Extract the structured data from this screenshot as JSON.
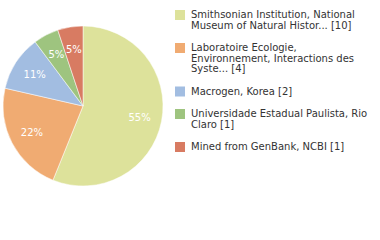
{
  "chart_data": {
    "type": "pie",
    "categories": [
      "Smithsonian Institution, National Museum of Natural Histor... [10]",
      "Laboratoire Ecologie, Environnement, Interactions des Syste... [4]",
      "Macrogen, Korea [2]",
      "Universidade Estadual Paulista, Rio Claro [1]",
      "Mined from GenBank, NCBI [1]"
    ],
    "values": [
      55,
      22,
      11,
      5,
      5
    ],
    "value_labels": [
      "55%",
      "22%",
      "11%",
      "5%",
      "5%"
    ],
    "colors": [
      "#dde29b",
      "#f0ab72",
      "#a2bde1",
      "#9ec47f",
      "#d87b62"
    ],
    "data_labels": true,
    "legend": "top-right"
  }
}
